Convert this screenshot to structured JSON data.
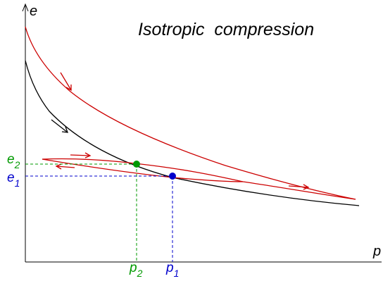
{
  "title": "Isotropic  compression",
  "axes": {
    "y_label": "e",
    "x_label": "p"
  },
  "points": {
    "point1": {
      "e_base": "e",
      "e_sub": "1",
      "p_base": "p",
      "p_sub": "1"
    },
    "point2": {
      "e_base": "e",
      "e_sub": "2",
      "p_base": "p",
      "p_sub": "2"
    }
  },
  "colors": {
    "axis": "#000000",
    "black_curve": "#000000",
    "red_curve": "#cc0000",
    "point1": "#0000cc",
    "point2": "#009900"
  },
  "icons": {
    "arrow": "arrow-icon"
  }
}
